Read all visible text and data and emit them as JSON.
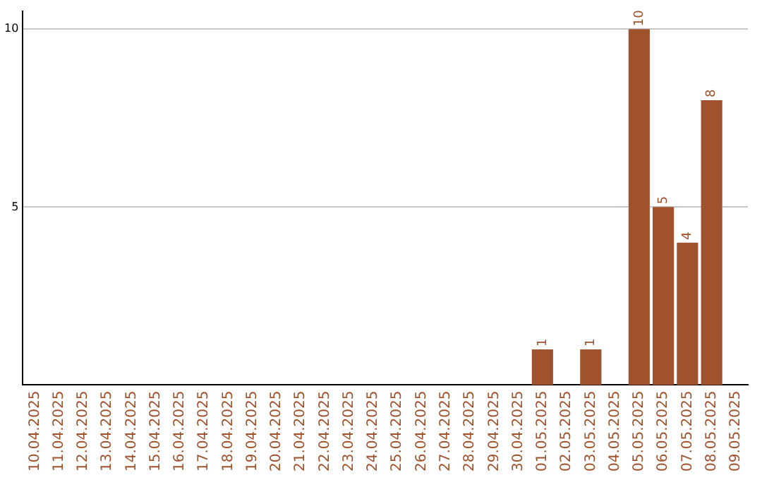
{
  "chart_data": {
    "type": "bar",
    "categories": [
      "10.04.2025",
      "11.04.2025",
      "12.04.2025",
      "13.04.2025",
      "14.04.2025",
      "15.04.2025",
      "16.04.2025",
      "17.04.2025",
      "18.04.2025",
      "19.04.2025",
      "20.04.2025",
      "21.04.2025",
      "22.04.2025",
      "23.04.2025",
      "24.04.2025",
      "25.04.2025",
      "26.04.2025",
      "27.04.2025",
      "28.04.2025",
      "29.04.2025",
      "30.04.2025",
      "01.05.2025",
      "02.05.2025",
      "03.05.2025",
      "04.05.2025",
      "05.05.2025",
      "06.05.2025",
      "07.05.2025",
      "08.05.2025",
      "09.05.2025"
    ],
    "values": [
      0,
      0,
      0,
      0,
      0,
      0,
      0,
      0,
      0,
      0,
      0,
      0,
      0,
      0,
      0,
      0,
      0,
      0,
      0,
      0,
      0,
      1,
      0,
      1,
      0,
      10,
      5,
      4,
      8,
      0
    ],
    "value_labels": [
      null,
      null,
      null,
      null,
      null,
      null,
      null,
      null,
      null,
      null,
      null,
      null,
      null,
      null,
      null,
      null,
      null,
      null,
      null,
      null,
      null,
      "1",
      null,
      "1",
      null,
      "10",
      "5",
      "4",
      "8",
      null
    ],
    "color": "#a0522d",
    "ylim": [
      0,
      10.5
    ],
    "yticks": [
      5,
      10
    ],
    "grid": "y"
  }
}
